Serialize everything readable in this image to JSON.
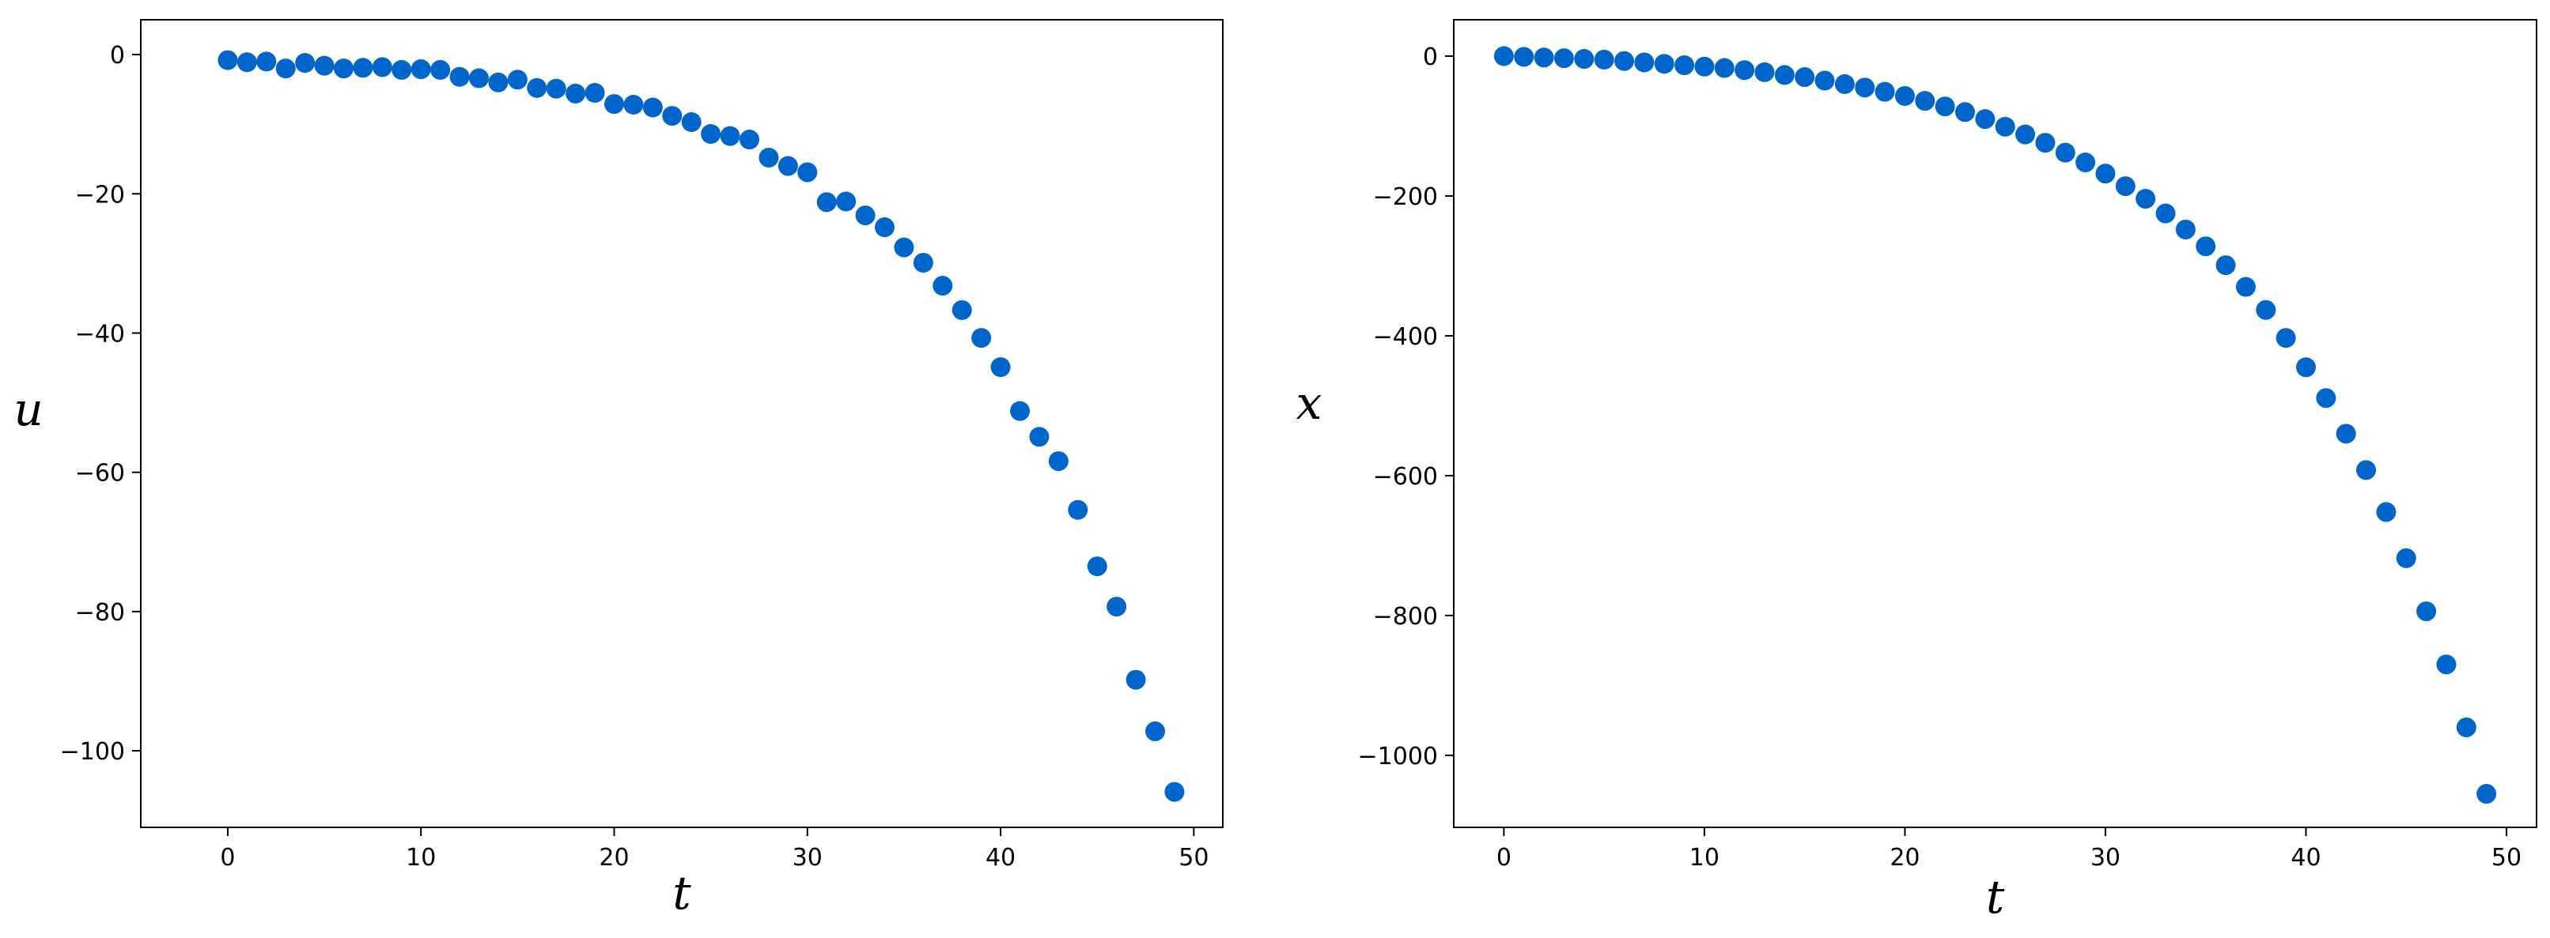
{
  "marker_color": "#0066cc",
  "chart_data": [
    {
      "type": "scatter",
      "xlabel": "t",
      "ylabel": "u",
      "xlim": [
        -4.5,
        51.5
      ],
      "ylim": [
        -111,
        5
      ],
      "xticks": [
        0,
        10,
        20,
        30,
        40,
        50
      ],
      "yticks": [
        0,
        -20,
        -40,
        -60,
        -80,
        -100
      ],
      "xtick_labels": [
        "0",
        "10",
        "20",
        "30",
        "40",
        "50"
      ],
      "ytick_labels": [
        "0",
        "−20",
        "−40",
        "−60",
        "−80",
        "−100"
      ],
      "grid": false,
      "series": [
        {
          "x": [
            0,
            1,
            2,
            3,
            4,
            5,
            6,
            7,
            8,
            9,
            10,
            11,
            12,
            13,
            14,
            15,
            16,
            17,
            18,
            19,
            20,
            21,
            22,
            23,
            24,
            25,
            26,
            27,
            28,
            29,
            30,
            31,
            32,
            33,
            34,
            35,
            36,
            37,
            38,
            39,
            40,
            41,
            42,
            43,
            44,
            45,
            46,
            47,
            48,
            49
          ],
          "y": [
            -0.8,
            -1.1,
            -1.0,
            -2.0,
            -1.2,
            -1.6,
            -2.0,
            -1.9,
            -1.8,
            -2.2,
            -2.1,
            -2.2,
            -3.2,
            -3.4,
            -4.0,
            -3.6,
            -4.8,
            -4.9,
            -5.6,
            -5.5,
            -7.1,
            -7.2,
            -7.6,
            -8.8,
            -9.7,
            -11.4,
            -11.7,
            -12.2,
            -14.8,
            -16.0,
            -16.9,
            -21.2,
            -21.1,
            -23.1,
            -24.8,
            -27.7,
            -29.9,
            -33.2,
            -36.7,
            -40.7,
            -44.9,
            -51.2,
            -54.9,
            -58.4,
            -65.4,
            -73.5,
            -79.3,
            -89.8,
            -97.2,
            -105.9
          ]
        }
      ]
    },
    {
      "type": "scatter",
      "xlabel": "t",
      "ylabel": "x",
      "xlim": [
        -2.5,
        51.5
      ],
      "ylim": [
        -1103,
        52
      ],
      "xticks": [
        0,
        10,
        20,
        30,
        40,
        50
      ],
      "yticks": [
        0,
        -200,
        -400,
        -600,
        -800,
        -1000
      ],
      "xtick_labels": [
        "0",
        "10",
        "20",
        "30",
        "40",
        "50"
      ],
      "ytick_labels": [
        "0",
        "−200",
        "−400",
        "−600",
        "−800",
        "−1000"
      ],
      "grid": false,
      "series": [
        {
          "x": [
            0,
            1,
            2,
            3,
            4,
            5,
            6,
            7,
            8,
            9,
            10,
            11,
            12,
            13,
            14,
            15,
            16,
            17,
            18,
            19,
            20,
            21,
            22,
            23,
            24,
            25,
            26,
            27,
            28,
            29,
            30,
            31,
            32,
            33,
            34,
            35,
            36,
            37,
            38,
            39,
            40,
            41,
            42,
            43,
            44,
            45,
            46,
            47,
            48,
            49
          ],
          "y": [
            0,
            -1,
            -2,
            -3,
            -4,
            -5,
            -7,
            -9,
            -11,
            -13,
            -15,
            -17,
            -20,
            -23,
            -27,
            -30,
            -35,
            -40,
            -45,
            -51,
            -57,
            -64,
            -72,
            -80,
            -90,
            -101,
            -112,
            -124,
            -138,
            -152,
            -168,
            -186,
            -204,
            -225,
            -248,
            -272,
            -299,
            -330,
            -363,
            -403,
            -445,
            -489,
            -540,
            -592,
            -652,
            -718,
            -794,
            -870,
            -960,
            -1055
          ]
        }
      ]
    }
  ]
}
